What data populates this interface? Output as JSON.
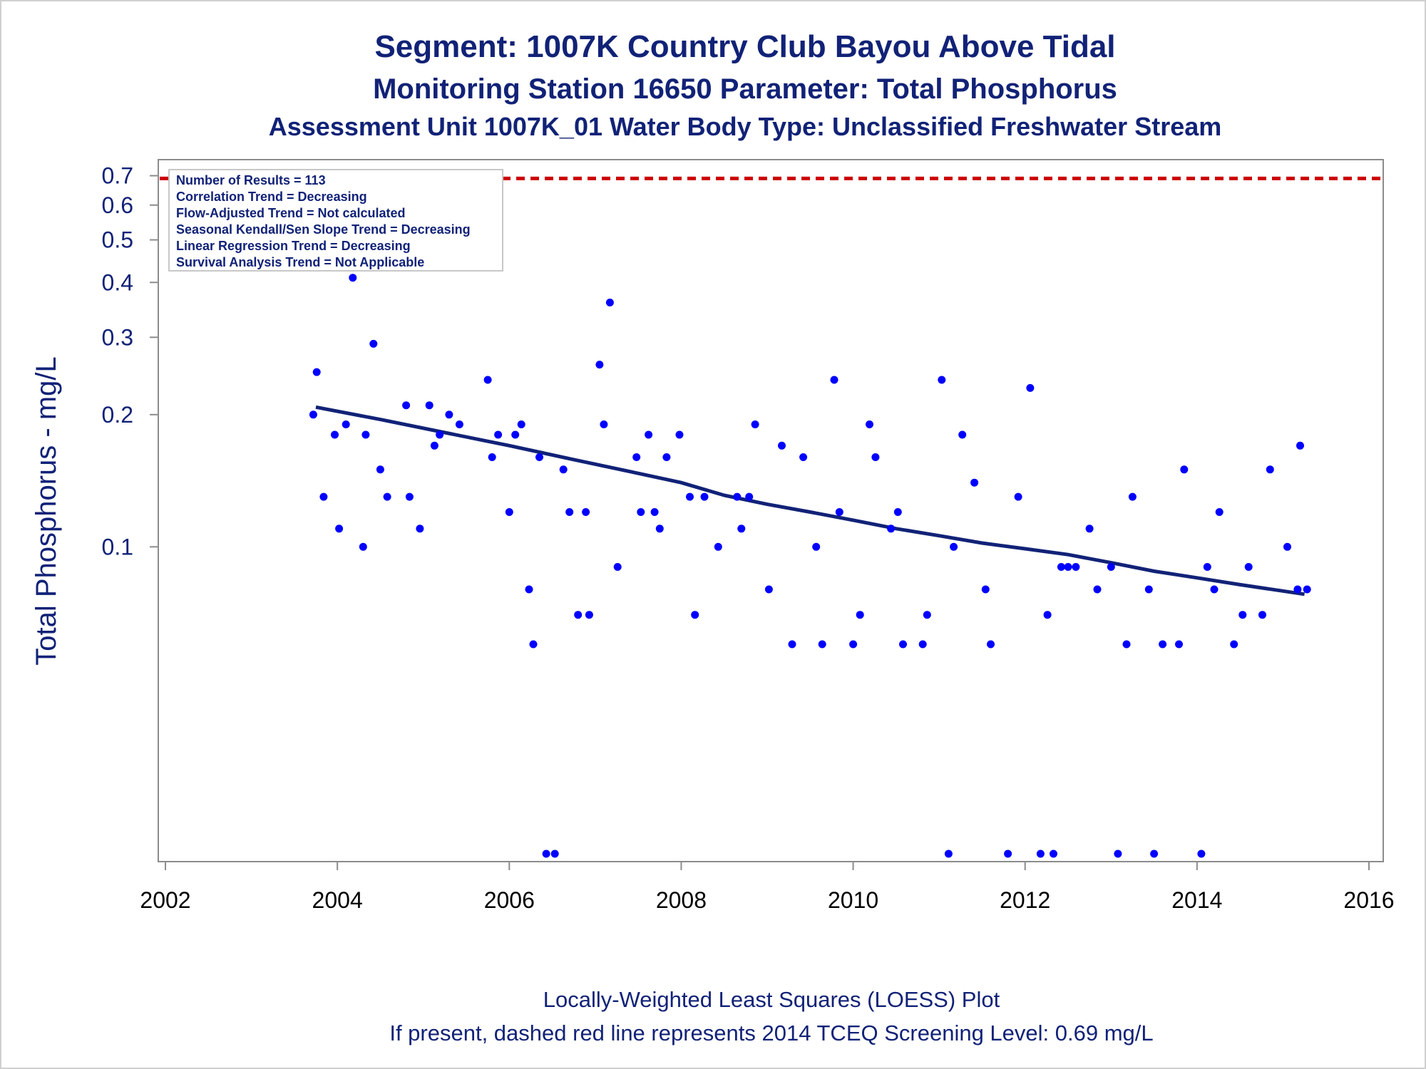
{
  "chart_data": {
    "type": "scatter",
    "title": "Segment: 1007K  Country Club Bayou Above Tidal",
    "subtitle": "Monitoring Station 16650 Parameter: Total Phosphorus",
    "subtitle2": "Assessment Unit 1007K_01   Water Body Type: Unclassified Freshwater Stream",
    "ylabel": "Total Phosphorus - mg/L",
    "yscale": "log",
    "xlim": [
      2002,
      2016
    ],
    "ylim": [
      0.02,
      0.72
    ],
    "xticks": [
      "2002",
      "2004",
      "2006",
      "2008",
      "2010",
      "2012",
      "2014",
      "2016"
    ],
    "yticks": [
      "0.1",
      "0.2",
      "0.3",
      "0.4",
      "0.5",
      "0.6",
      "0.7"
    ],
    "stats_box": [
      "Number of Results = 113",
      "Correlation Trend = Decreasing",
      "Flow-Adjusted Trend = Not calculated",
      "Seasonal Kendall/Sen Slope Trend = Decreasing",
      "Linear Regression Trend = Decreasing",
      "Survival Analysis Trend = Not Applicable"
    ],
    "stats_box_position": "top-left",
    "screening_level": 0.69,
    "points": [
      [
        2003.72,
        0.2
      ],
      [
        2003.76,
        0.25
      ],
      [
        2003.84,
        0.13
      ],
      [
        2003.97,
        0.18
      ],
      [
        2004.02,
        0.11
      ],
      [
        2004.1,
        0.19
      ],
      [
        2004.18,
        0.41
      ],
      [
        2004.3,
        0.1
      ],
      [
        2004.33,
        0.18
      ],
      [
        2004.42,
        0.29
      ],
      [
        2004.5,
        0.15
      ],
      [
        2004.58,
        0.13
      ],
      [
        2004.72,
        0.7
      ],
      [
        2004.8,
        0.21
      ],
      [
        2004.84,
        0.13
      ],
      [
        2004.96,
        0.11
      ],
      [
        2005.07,
        0.21
      ],
      [
        2005.13,
        0.17
      ],
      [
        2005.19,
        0.18
      ],
      [
        2005.3,
        0.2
      ],
      [
        2005.42,
        0.19
      ],
      [
        2005.75,
        0.24
      ],
      [
        2005.8,
        0.16
      ],
      [
        2005.87,
        0.18
      ],
      [
        2006.0,
        0.12
      ],
      [
        2006.07,
        0.18
      ],
      [
        2006.14,
        0.19
      ],
      [
        2006.23,
        0.08
      ],
      [
        2006.28,
        0.06
      ],
      [
        2006.35,
        0.16
      ],
      [
        2006.43,
        0.02
      ],
      [
        2006.53,
        0.02
      ],
      [
        2006.63,
        0.15
      ],
      [
        2006.7,
        0.12
      ],
      [
        2006.8,
        0.07
      ],
      [
        2006.89,
        0.12
      ],
      [
        2006.93,
        0.07
      ],
      [
        2007.05,
        0.26
      ],
      [
        2007.1,
        0.19
      ],
      [
        2007.17,
        0.36
      ],
      [
        2007.26,
        0.09
      ],
      [
        2007.48,
        0.16
      ],
      [
        2007.53,
        0.12
      ],
      [
        2007.62,
        0.18
      ],
      [
        2007.69,
        0.12
      ],
      [
        2007.75,
        0.11
      ],
      [
        2007.83,
        0.16
      ],
      [
        2007.98,
        0.18
      ],
      [
        2008.1,
        0.13
      ],
      [
        2008.16,
        0.07
      ],
      [
        2008.27,
        0.13
      ],
      [
        2008.43,
        0.1
      ],
      [
        2008.65,
        0.13
      ],
      [
        2008.7,
        0.11
      ],
      [
        2008.79,
        0.13
      ],
      [
        2008.86,
        0.19
      ],
      [
        2009.02,
        0.08
      ],
      [
        2009.17,
        0.17
      ],
      [
        2009.29,
        0.06
      ],
      [
        2009.42,
        0.16
      ],
      [
        2009.57,
        0.1
      ],
      [
        2009.64,
        0.06
      ],
      [
        2009.78,
        0.24
      ],
      [
        2009.84,
        0.12
      ],
      [
        2010.0,
        0.06
      ],
      [
        2010.08,
        0.07
      ],
      [
        2010.19,
        0.19
      ],
      [
        2010.26,
        0.16
      ],
      [
        2010.44,
        0.11
      ],
      [
        2010.52,
        0.12
      ],
      [
        2010.58,
        0.06
      ],
      [
        2010.81,
        0.06
      ],
      [
        2010.86,
        0.07
      ],
      [
        2011.03,
        0.24
      ],
      [
        2011.11,
        0.02
      ],
      [
        2011.17,
        0.1
      ],
      [
        2011.27,
        0.18
      ],
      [
        2011.41,
        0.14
      ],
      [
        2011.54,
        0.08
      ],
      [
        2011.6,
        0.06
      ],
      [
        2011.8,
        0.02
      ],
      [
        2011.92,
        0.13
      ],
      [
        2012.06,
        0.23
      ],
      [
        2012.18,
        0.02
      ],
      [
        2012.26,
        0.07
      ],
      [
        2012.33,
        0.02
      ],
      [
        2012.42,
        0.09
      ],
      [
        2012.5,
        0.09
      ],
      [
        2012.59,
        0.09
      ],
      [
        2012.75,
        0.11
      ],
      [
        2012.84,
        0.08
      ],
      [
        2013.0,
        0.09
      ],
      [
        2013.08,
        0.02
      ],
      [
        2013.18,
        0.06
      ],
      [
        2013.25,
        0.13
      ],
      [
        2013.44,
        0.08
      ],
      [
        2013.5,
        0.02
      ],
      [
        2013.6,
        0.06
      ],
      [
        2013.79,
        0.06
      ],
      [
        2013.85,
        0.15
      ],
      [
        2014.05,
        0.02
      ],
      [
        2014.12,
        0.09
      ],
      [
        2014.2,
        0.08
      ],
      [
        2014.26,
        0.12
      ],
      [
        2014.43,
        0.06
      ],
      [
        2014.53,
        0.07
      ],
      [
        2014.6,
        0.09
      ],
      [
        2014.76,
        0.07
      ],
      [
        2014.85,
        0.15
      ],
      [
        2015.05,
        0.1
      ],
      [
        2015.17,
        0.08
      ],
      [
        2015.2,
        0.17
      ],
      [
        2015.28,
        0.08
      ]
    ],
    "loess": [
      [
        2003.75,
        0.208
      ],
      [
        2004.5,
        0.195
      ],
      [
        2005.25,
        0.182
      ],
      [
        2006.0,
        0.17
      ],
      [
        2006.75,
        0.158
      ],
      [
        2007.5,
        0.147
      ],
      [
        2008.0,
        0.14
      ],
      [
        2008.5,
        0.131
      ],
      [
        2009.0,
        0.125
      ],
      [
        2009.5,
        0.12
      ],
      [
        2010.0,
        0.115
      ],
      [
        2010.5,
        0.11
      ],
      [
        2011.0,
        0.106
      ],
      [
        2011.5,
        0.102
      ],
      [
        2012.0,
        0.099
      ],
      [
        2012.5,
        0.096
      ],
      [
        2013.0,
        0.092
      ],
      [
        2013.5,
        0.088
      ],
      [
        2014.0,
        0.085
      ],
      [
        2014.5,
        0.082
      ],
      [
        2015.25,
        0.078
      ]
    ],
    "colors": {
      "points": "#0000ff",
      "loess": "#112277",
      "screening": "#cc0000",
      "text": "#112277"
    }
  },
  "footer": {
    "line1": "Locally-Weighted Least Squares (LOESS) Plot",
    "line2": "If present, dashed red line represents 2014 TCEQ Screening Level: 0.69 mg/L"
  }
}
